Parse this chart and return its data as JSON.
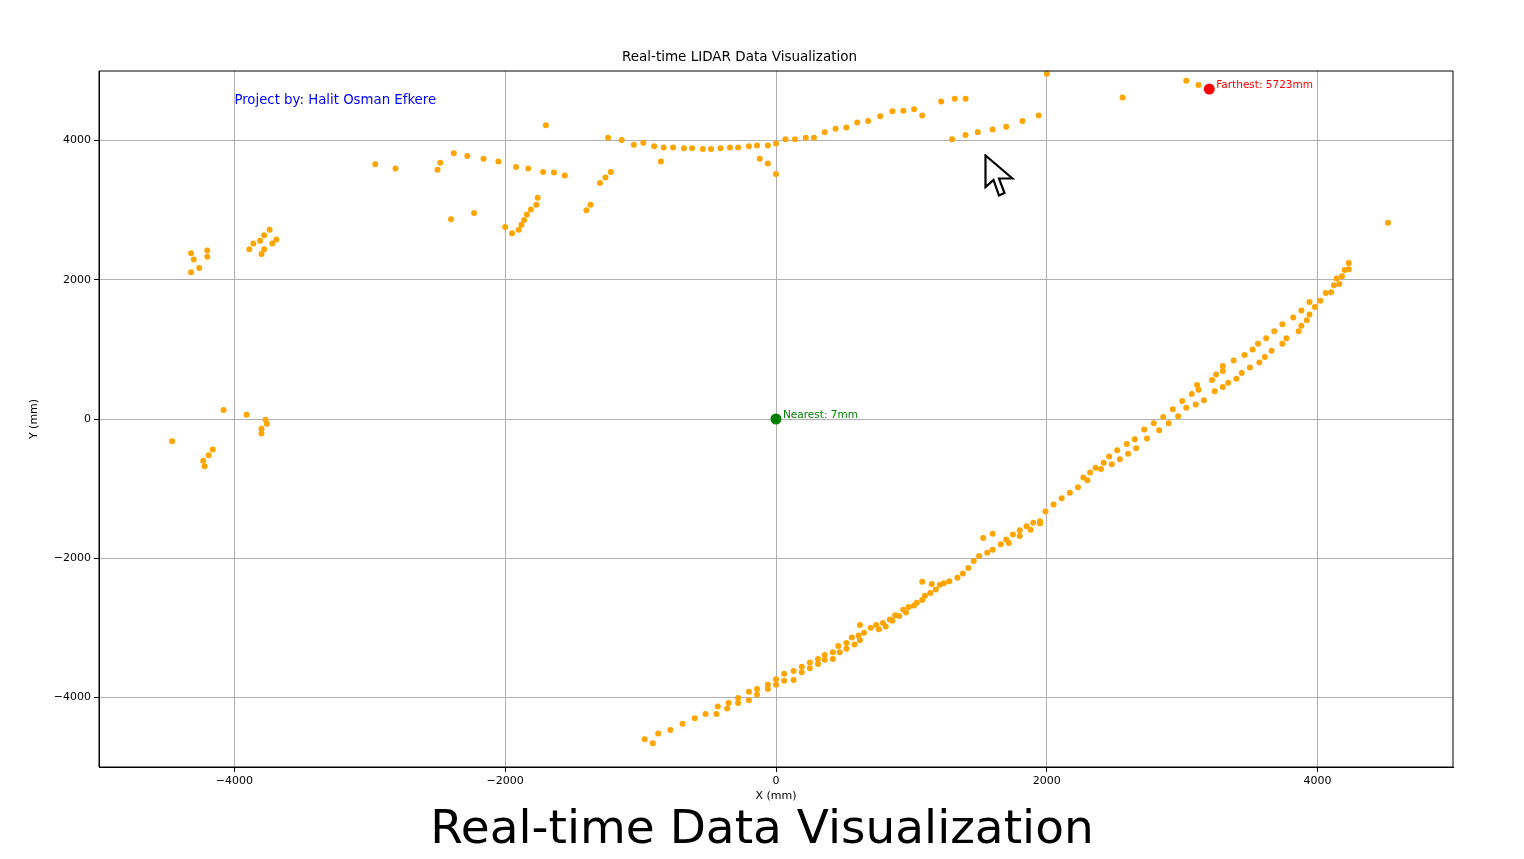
{
  "chart_data": {
    "type": "scatter",
    "title": "Real-time LIDAR Data Visualization",
    "xlabel": "X (mm)",
    "ylabel": "Y (mm)",
    "xlim": [
      -5000,
      5000
    ],
    "ylim": [
      -5000,
      5000
    ],
    "xticks": [
      {
        "value": -4000,
        "label": "−4000"
      },
      {
        "value": -2000,
        "label": "−2000"
      },
      0,
      2000,
      4000
    ],
    "yticks": [
      {
        "value": -4000,
        "label": "−4000"
      },
      {
        "value": -2000,
        "label": "−2000"
      },
      0,
      2000,
      4000
    ],
    "grid": true,
    "marker": "circle",
    "annotations": [
      "Project by: Halit Osman Efkere",
      {
        "text": "Nearest: 7mm",
        "x": 0,
        "y": 0
      },
      {
        "text": "Farthest: 5723mm",
        "x": 3200,
        "y": 4740
      },
      "Real-time Data Visualization"
    ],
    "series": [
      {
        "color": "#ffa500",
        "x": [
          -2960,
          -2810,
          -2500,
          -2480,
          -2380,
          -2280,
          -2160,
          -2050,
          -1920,
          -1830,
          -1720,
          -1640,
          -1560,
          -1700,
          -2400,
          -2230,
          -2000,
          -1950,
          -1900,
          -1880,
          -1860,
          -1840,
          -1810,
          -1770,
          -1760,
          -1400,
          -1370,
          -1300,
          -1260,
          -1220,
          -1240,
          -1140,
          -1050,
          -980,
          -900,
          -830,
          -850,
          -760,
          -680,
          -620,
          -540,
          -480,
          -410,
          -340,
          -280,
          -200,
          -140,
          -60,
          -120,
          -60,
          0,
          0,
          70,
          140,
          220,
          280,
          360,
          440,
          520,
          600,
          680,
          770,
          860,
          940,
          1020,
          1080,
          1220,
          1320,
          1400,
          1300,
          1400,
          1490,
          1600,
          1700,
          1820,
          1940,
          2000,
          2560,
          3030,
          3120,
          4520,
          -4320,
          -4300,
          -4320,
          -4260,
          -4200,
          -4200,
          -3890,
          -3860,
          -3810,
          -3780,
          -3740,
          -3690,
          -3720,
          -3780,
          -3800,
          -4080,
          -3910,
          -3770,
          -3760,
          -3800,
          -3800,
          -4460,
          -4160,
          -4190,
          -4230,
          -4220,
          -970,
          -910,
          -870,
          -780,
          -690,
          -600,
          -520,
          -440,
          -430,
          -360,
          -350,
          -280,
          -280,
          -200,
          -200,
          -140,
          -140,
          -60,
          -60,
          0,
          0,
          60,
          60,
          130,
          130,
          190,
          190,
          250,
          250,
          310,
          310,
          360,
          360,
          420,
          420,
          470,
          460,
          520,
          520,
          580,
          560,
          620,
          610,
          620,
          650,
          700,
          740,
          760,
          790,
          810,
          840,
          860,
          880,
          910,
          940,
          960,
          980,
          1020,
          1040,
          1080,
          1100,
          1080,
          1150,
          1140,
          1180,
          1210,
          1240,
          1280,
          1340,
          1380,
          1420,
          1460,
          1500,
          1530,
          1600,
          1560,
          1600,
          1660,
          1700,
          1750,
          1800,
          1850,
          1900,
          1950,
          1720,
          1800,
          1880,
          1950,
          1990,
          2050,
          2110,
          2170,
          2230,
          2270,
          2300,
          2320,
          2360,
          2400,
          2420,
          2460,
          2480,
          2520,
          2540,
          2590,
          2600,
          2650,
          2660,
          2720,
          2740,
          2790,
          2830,
          2860,
          2900,
          2930,
          2970,
          3000,
          3030,
          3070,
          3110,
          3120,
          3100,
          3160,
          3220,
          3250,
          3240,
          3300,
          3300,
          3300,
          3340,
          3380,
          3400,
          3440,
          3460,
          3500,
          3520,
          3560,
          3570,
          3610,
          3620,
          3660,
          3680,
          3740,
          3740,
          3770,
          3820,
          3860,
          3880,
          3880,
          3920,
          3940,
          3940,
          3980,
          4020,
          4060,
          4100,
          4120,
          4140,
          4160,
          4180,
          4200,
          4230,
          4230
        ],
        "values": [
          3660,
          3600,
          3580,
          3680,
          3820,
          3780,
          3740,
          3700,
          3620,
          3600,
          3550,
          3540,
          3500,
          4220,
          2870,
          2960,
          2760,
          2670,
          2720,
          2790,
          2860,
          2940,
          3010,
          3080,
          3180,
          3000,
          3080,
          3390,
          3470,
          3550,
          4040,
          4010,
          3940,
          3970,
          3920,
          3900,
          3700,
          3900,
          3890,
          3890,
          3880,
          3880,
          3890,
          3900,
          3900,
          3920,
          3930,
          3930,
          3740,
          3670,
          3520,
          3960,
          4020,
          4020,
          4040,
          4040,
          4120,
          4170,
          4190,
          4260,
          4280,
          4350,
          4420,
          4430,
          4450,
          4360,
          4560,
          4600,
          4600,
          4020,
          4080,
          4120,
          4160,
          4200,
          4280,
          4360,
          4960,
          4620,
          4860,
          4800,
          2820,
          2380,
          2290,
          2110,
          2170,
          2420,
          2330,
          2440,
          2520,
          2560,
          2640,
          2720,
          2580,
          2520,
          2440,
          2370,
          130,
          60,
          -10,
          -70,
          -140,
          -210,
          -320,
          -440,
          -520,
          -600,
          -680,
          -4600,
          -4660,
          -4520,
          -4470,
          -4380,
          -4300,
          -4240,
          -4240,
          -4130,
          -4160,
          -4080,
          -4080,
          -4010,
          -4040,
          -3920,
          -3960,
          -3880,
          -3880,
          -3820,
          -3820,
          -3740,
          -3760,
          -3660,
          -3750,
          -3620,
          -3640,
          -3560,
          -3580,
          -3500,
          -3520,
          -3450,
          -3460,
          -3390,
          -3450,
          -3350,
          -3350,
          -3260,
          -3300,
          -3220,
          -3240,
          -3140,
          -3180,
          -3110,
          -2960,
          -3070,
          -3000,
          -2960,
          -3020,
          -2930,
          -2980,
          -2880,
          -2900,
          -2820,
          -2830,
          -2740,
          -2780,
          -2700,
          -2680,
          -2640,
          -2600,
          -2540,
          -2340,
          -2370,
          -2500,
          -2450,
          -2380,
          -2360,
          -2330,
          -2280,
          -2220,
          -2140,
          -2040,
          -1970,
          -1710,
          -1650,
          -1920,
          -1880,
          -1800,
          -1730,
          -1660,
          -1600,
          -1540,
          -1490,
          -1470,
          -1780,
          -1680,
          -1590,
          -1500,
          -1330,
          -1230,
          -1140,
          -1060,
          -980,
          -840,
          -880,
          -770,
          -700,
          -720,
          -630,
          -540,
          -650,
          -450,
          -580,
          -360,
          -500,
          -290,
          -420,
          -150,
          -280,
          -60,
          -160,
          30,
          -60,
          140,
          40,
          260,
          160,
          360,
          490,
          420,
          210,
          270,
          560,
          640,
          400,
          760,
          690,
          460,
          520,
          840,
          580,
          660,
          920,
          740,
          1000,
          1080,
          810,
          890,
          1160,
          980,
          1260,
          1360,
          1080,
          1160,
          1460,
          1260,
          1560,
          1340,
          1420,
          1500,
          1680,
          1610,
          1700,
          1810,
          1820,
          1920,
          2020,
          1940,
          2050,
          2140,
          2150,
          2240
        ]
      },
      {
        "color": "#008000",
        "x": [
          0
        ],
        "values": [
          0
        ]
      },
      {
        "color": "#ff0000",
        "x": [
          3200
        ],
        "values": [
          4740
        ]
      }
    ]
  }
}
